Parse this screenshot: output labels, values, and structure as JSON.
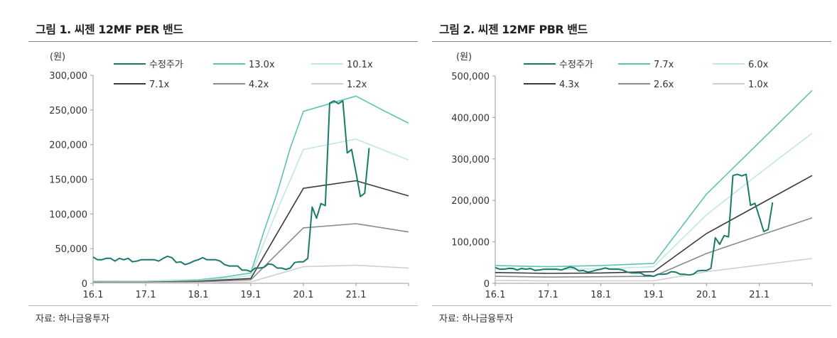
{
  "chart_data": [
    {
      "type": "line",
      "title": "그림 1. 씨젠 12MF PER 밴드",
      "ylabel": "(원)",
      "source": "자료: 하나금융투자",
      "ylim": [
        0,
        300000
      ],
      "xlim": [
        "2016-01",
        "2022-01"
      ],
      "y_ticks": [
        0,
        50000,
        100000,
        150000,
        200000,
        250000,
        300000
      ],
      "y_tick_labels": [
        "0",
        "50,000",
        "100,000",
        "150,000",
        "200,000",
        "250,000",
        "300,000"
      ],
      "x_ticks": [
        "2016-01",
        "2017-01",
        "2018-01",
        "2019-01",
        "2020-01",
        "2021-01"
      ],
      "x_tick_labels": [
        "16.1",
        "17.1",
        "18.1",
        "19.1",
        "20.1",
        "21.1"
      ],
      "legend": "top",
      "grid": false,
      "series": [
        {
          "name": "수정주가",
          "color": "#1a7a6a",
          "width": 2,
          "points": [
            [
              "2016-01",
              38000
            ],
            [
              "2016-02",
              34000
            ],
            [
              "2016-03",
              34000
            ],
            [
              "2016-04",
              36000
            ],
            [
              "2016-05",
              36000
            ],
            [
              "2016-06",
              32000
            ],
            [
              "2016-07",
              36000
            ],
            [
              "2016-08",
              34000
            ],
            [
              "2016-09",
              36000
            ],
            [
              "2016-10",
              31000
            ],
            [
              "2016-11",
              32000
            ],
            [
              "2016-12",
              34000
            ],
            [
              "2017-01",
              34000
            ],
            [
              "2017-02",
              34000
            ],
            [
              "2017-03",
              34000
            ],
            [
              "2017-04",
              32000
            ],
            [
              "2017-05",
              36000
            ],
            [
              "2017-06",
              39000
            ],
            [
              "2017-07",
              37000
            ],
            [
              "2017-08",
              30000
            ],
            [
              "2017-09",
              31000
            ],
            [
              "2017-10",
              27000
            ],
            [
              "2017-11",
              29000
            ],
            [
              "2017-12",
              32000
            ],
            [
              "2018-01",
              34000
            ],
            [
              "2018-02",
              37000
            ],
            [
              "2018-03",
              34000
            ],
            [
              "2018-04",
              34000
            ],
            [
              "2018-05",
              34000
            ],
            [
              "2018-06",
              32000
            ],
            [
              "2018-07",
              27000
            ],
            [
              "2018-08",
              25000
            ],
            [
              "2018-09",
              25000
            ],
            [
              "2018-10",
              25000
            ],
            [
              "2018-11",
              19000
            ],
            [
              "2018-12",
              19000
            ],
            [
              "2019-01",
              17000
            ],
            [
              "2019-02",
              22000
            ],
            [
              "2019-03",
              22000
            ],
            [
              "2019-04",
              23000
            ],
            [
              "2019-05",
              28000
            ],
            [
              "2019-06",
              27000
            ],
            [
              "2019-07",
              22000
            ],
            [
              "2019-08",
              22000
            ],
            [
              "2019-09",
              20000
            ],
            [
              "2019-10",
              22000
            ],
            [
              "2019-11",
              30000
            ],
            [
              "2019-12",
              31000
            ],
            [
              "2020-01",
              31000
            ],
            [
              "2020-02",
              36000
            ],
            [
              "2020-03",
              110000
            ],
            [
              "2020-04",
              94000
            ],
            [
              "2020-05",
              115000
            ],
            [
              "2020-06",
              112000
            ],
            [
              "2020-07",
              260000
            ],
            [
              "2020-08",
              263000
            ],
            [
              "2020-09",
              259000
            ],
            [
              "2020-10",
              263000
            ],
            [
              "2020-11",
              188000
            ],
            [
              "2020-12",
              193000
            ],
            [
              "2021-01",
              160000
            ],
            [
              "2021-02",
              125000
            ],
            [
              "2021-03",
              130000
            ],
            [
              "2021-04",
              195000
            ]
          ]
        },
        {
          "name": "13.0x",
          "color": "#5cc4b0",
          "width": 1.6,
          "points": [
            [
              "2016-01",
              3000
            ],
            [
              "2017-01",
              3000
            ],
            [
              "2018-01",
              5000
            ],
            [
              "2018-07",
              9000
            ],
            [
              "2019-01",
              15000
            ],
            [
              "2019-04",
              75000
            ],
            [
              "2019-07",
              130000
            ],
            [
              "2019-10",
              195000
            ],
            [
              "2020-01",
              248000
            ],
            [
              "2021-01",
              270000
            ],
            [
              "2021-07",
              250000
            ],
            [
              "2022-01",
              231000
            ]
          ]
        },
        {
          "name": "10.1x",
          "color": "#bfe8df",
          "width": 1.6,
          "points": [
            [
              "2016-01",
              2500
            ],
            [
              "2017-01",
              2500
            ],
            [
              "2018-01",
              4000
            ],
            [
              "2018-07",
              7000
            ],
            [
              "2019-01",
              11000
            ],
            [
              "2019-07",
              105000
            ],
            [
              "2020-01",
              193000
            ],
            [
              "2021-01",
              208000
            ],
            [
              "2022-01",
              178000
            ]
          ]
        },
        {
          "name": "7.1x",
          "color": "#3a3a3a",
          "width": 1.6,
          "points": [
            [
              "2016-01",
              1500
            ],
            [
              "2017-01",
              1500
            ],
            [
              "2018-01",
              3000
            ],
            [
              "2019-01",
              7000
            ],
            [
              "2020-01",
              137000
            ],
            [
              "2021-01",
              148000
            ],
            [
              "2022-01",
              126000
            ]
          ]
        },
        {
          "name": "4.2x",
          "color": "#8a8a8a",
          "width": 1.6,
          "points": [
            [
              "2016-01",
              1000
            ],
            [
              "2017-01",
              1000
            ],
            [
              "2018-01",
              2000
            ],
            [
              "2019-01",
              5000
            ],
            [
              "2020-01",
              80000
            ],
            [
              "2021-01",
              86000
            ],
            [
              "2022-01",
              74000
            ]
          ]
        },
        {
          "name": "1.2x",
          "color": "#cfcfcf",
          "width": 1.6,
          "points": [
            [
              "2016-01",
              300
            ],
            [
              "2018-01",
              600
            ],
            [
              "2019-01",
              2000
            ],
            [
              "2020-01",
              24000
            ],
            [
              "2021-01",
              26000
            ],
            [
              "2022-01",
              22000
            ]
          ]
        }
      ]
    },
    {
      "type": "line",
      "title": "그림 2. 씨젠 12MF PBR 밴드",
      "ylabel": "(원)",
      "source": "자료: 하나금융투자",
      "ylim": [
        0,
        500000
      ],
      "xlim": [
        "2016-01",
        "2022-01"
      ],
      "y_ticks": [
        0,
        100000,
        200000,
        300000,
        400000,
        500000
      ],
      "y_tick_labels": [
        "0",
        "100,000",
        "200,000",
        "300,000",
        "400,000",
        "500,000"
      ],
      "x_ticks": [
        "2016-01",
        "2017-01",
        "2018-01",
        "2019-01",
        "2020-01",
        "2021-01"
      ],
      "x_tick_labels": [
        "16.1",
        "17.1",
        "18.1",
        "19.1",
        "20.1",
        "21.1"
      ],
      "legend": "top",
      "grid": false,
      "series": [
        {
          "name": "수정주가",
          "color": "#1a7a6a",
          "width": 2,
          "points": [
            [
              "2016-01",
              38000
            ],
            [
              "2016-02",
              34000
            ],
            [
              "2016-03",
              34000
            ],
            [
              "2016-04",
              36000
            ],
            [
              "2016-05",
              36000
            ],
            [
              "2016-06",
              32000
            ],
            [
              "2016-07",
              36000
            ],
            [
              "2016-08",
              34000
            ],
            [
              "2016-09",
              36000
            ],
            [
              "2016-10",
              31000
            ],
            [
              "2016-11",
              32000
            ],
            [
              "2016-12",
              34000
            ],
            [
              "2017-01",
              34000
            ],
            [
              "2017-02",
              34000
            ],
            [
              "2017-03",
              34000
            ],
            [
              "2017-04",
              32000
            ],
            [
              "2017-05",
              36000
            ],
            [
              "2017-06",
              39000
            ],
            [
              "2017-07",
              37000
            ],
            [
              "2017-08",
              30000
            ],
            [
              "2017-09",
              31000
            ],
            [
              "2017-10",
              27000
            ],
            [
              "2017-11",
              29000
            ],
            [
              "2017-12",
              32000
            ],
            [
              "2018-01",
              34000
            ],
            [
              "2018-02",
              37000
            ],
            [
              "2018-03",
              34000
            ],
            [
              "2018-04",
              34000
            ],
            [
              "2018-05",
              34000
            ],
            [
              "2018-06",
              32000
            ],
            [
              "2018-07",
              27000
            ],
            [
              "2018-08",
              25000
            ],
            [
              "2018-09",
              25000
            ],
            [
              "2018-10",
              25000
            ],
            [
              "2018-11",
              19000
            ],
            [
              "2018-12",
              19000
            ],
            [
              "2019-01",
              17000
            ],
            [
              "2019-02",
              22000
            ],
            [
              "2019-03",
              22000
            ],
            [
              "2019-04",
              23000
            ],
            [
              "2019-05",
              28000
            ],
            [
              "2019-06",
              27000
            ],
            [
              "2019-07",
              22000
            ],
            [
              "2019-08",
              22000
            ],
            [
              "2019-09",
              20000
            ],
            [
              "2019-10",
              22000
            ],
            [
              "2019-11",
              30000
            ],
            [
              "2019-12",
              31000
            ],
            [
              "2020-01",
              31000
            ],
            [
              "2020-02",
              36000
            ],
            [
              "2020-03",
              110000
            ],
            [
              "2020-04",
              94000
            ],
            [
              "2020-05",
              115000
            ],
            [
              "2020-06",
              112000
            ],
            [
              "2020-07",
              260000
            ],
            [
              "2020-08",
              263000
            ],
            [
              "2020-09",
              259000
            ],
            [
              "2020-10",
              263000
            ],
            [
              "2020-11",
              188000
            ],
            [
              "2020-12",
              193000
            ],
            [
              "2021-01",
              160000
            ],
            [
              "2021-02",
              125000
            ],
            [
              "2021-03",
              130000
            ],
            [
              "2021-04",
              195000
            ]
          ]
        },
        {
          "name": "7.7x",
          "color": "#5cc4b0",
          "width": 1.6,
          "points": [
            [
              "2016-01",
              43000
            ],
            [
              "2017-01",
              40000
            ],
            [
              "2018-01",
              43000
            ],
            [
              "2019-01",
              48000
            ],
            [
              "2020-01",
              215000
            ],
            [
              "2021-01",
              340000
            ],
            [
              "2022-01",
              465000
            ]
          ]
        },
        {
          "name": "6.0x",
          "color": "#bfe8df",
          "width": 1.6,
          "points": [
            [
              "2016-01",
              35000
            ],
            [
              "2017-01",
              33000
            ],
            [
              "2018-01",
              35000
            ],
            [
              "2019-01",
              40000
            ],
            [
              "2020-01",
              165000
            ],
            [
              "2021-01",
              265000
            ],
            [
              "2022-01",
              362000
            ]
          ]
        },
        {
          "name": "4.3x",
          "color": "#3a3a3a",
          "width": 1.6,
          "points": [
            [
              "2016-01",
              26000
            ],
            [
              "2017-01",
              24000
            ],
            [
              "2018-01",
              25000
            ],
            [
              "2019-01",
              28000
            ],
            [
              "2020-01",
              120000
            ],
            [
              "2021-01",
              190000
            ],
            [
              "2022-01",
              260000
            ]
          ]
        },
        {
          "name": "2.6x",
          "color": "#8a8a8a",
          "width": 1.6,
          "points": [
            [
              "2016-01",
              17000
            ],
            [
              "2017-01",
              15000
            ],
            [
              "2018-01",
              16000
            ],
            [
              "2019-01",
              17000
            ],
            [
              "2020-01",
              72000
            ],
            [
              "2021-01",
              115000
            ],
            [
              "2022-01",
              158000
            ]
          ]
        },
        {
          "name": "1.0x",
          "color": "#cfcfcf",
          "width": 1.6,
          "points": [
            [
              "2016-01",
              7000
            ],
            [
              "2017-01",
              6000
            ],
            [
              "2018-01",
              6000
            ],
            [
              "2019-01",
              6000
            ],
            [
              "2020-01",
              28000
            ],
            [
              "2021-01",
              44000
            ],
            [
              "2022-01",
              60000
            ]
          ]
        }
      ]
    }
  ]
}
